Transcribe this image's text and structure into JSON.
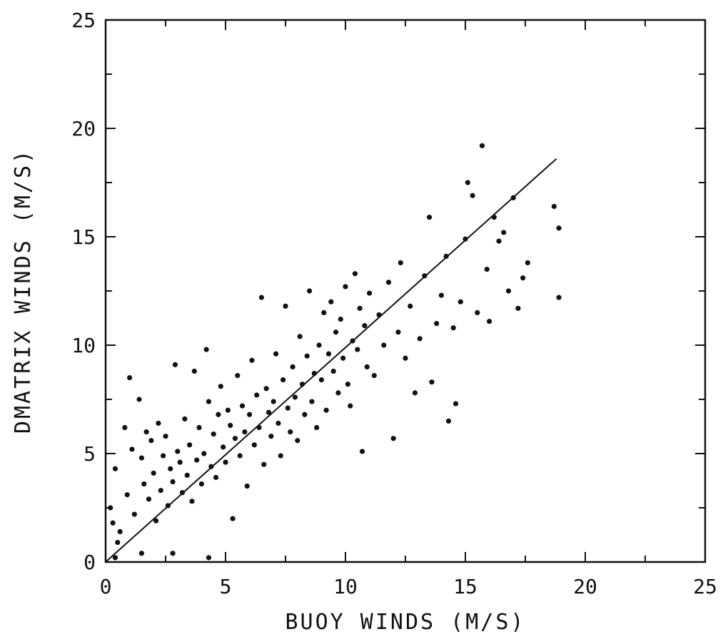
{
  "chart_data": {
    "type": "scatter",
    "title": "",
    "xlabel": "BUOY WINDS (M/S)",
    "ylabel": "DMATRIX WINDS (M/S)",
    "xlim": [
      0,
      25
    ],
    "ylim": [
      0,
      25
    ],
    "x_ticks": [
      "0",
      "5",
      "10",
      "15",
      "20",
      "25"
    ],
    "y_ticks": [
      "0",
      "5",
      "10",
      "15",
      "20",
      "25"
    ],
    "grid": false,
    "legend": "none",
    "colors": {
      "points": "#111111",
      "line": "#111111",
      "frame": "#111111"
    },
    "fit_line": {
      "x": [
        0,
        18.8
      ],
      "y": [
        0,
        18.6
      ]
    },
    "points": [
      [
        0.2,
        2.5
      ],
      [
        0.3,
        1.8
      ],
      [
        0.4,
        4.3
      ],
      [
        0.5,
        0.9
      ],
      [
        0.6,
        1.4
      ],
      [
        0.8,
        6.2
      ],
      [
        0.9,
        3.1
      ],
      [
        1.0,
        8.5
      ],
      [
        1.1,
        5.2
      ],
      [
        1.2,
        2.2
      ],
      [
        1.4,
        7.5
      ],
      [
        1.5,
        4.8
      ],
      [
        1.6,
        3.6
      ],
      [
        1.7,
        6.0
      ],
      [
        1.8,
        2.9
      ],
      [
        1.9,
        5.6
      ],
      [
        2.0,
        4.1
      ],
      [
        2.1,
        1.9
      ],
      [
        2.2,
        6.4
      ],
      [
        2.3,
        3.3
      ],
      [
        2.4,
        4.9
      ],
      [
        2.5,
        5.8
      ],
      [
        2.6,
        2.6
      ],
      [
        2.7,
        4.3
      ],
      [
        2.8,
        3.7
      ],
      [
        2.9,
        9.1
      ],
      [
        3.0,
        5.1
      ],
      [
        3.1,
        4.6
      ],
      [
        3.2,
        3.2
      ],
      [
        3.3,
        6.6
      ],
      [
        3.4,
        4.0
      ],
      [
        3.5,
        5.4
      ],
      [
        3.6,
        2.8
      ],
      [
        3.7,
        8.8
      ],
      [
        3.8,
        4.7
      ],
      [
        3.9,
        6.2
      ],
      [
        4.0,
        3.6
      ],
      [
        4.1,
        5.0
      ],
      [
        4.2,
        9.8
      ],
      [
        4.3,
        7.4
      ],
      [
        4.4,
        4.4
      ],
      [
        4.5,
        5.9
      ],
      [
        4.6,
        3.9
      ],
      [
        4.7,
        6.8
      ],
      [
        4.8,
        8.1
      ],
      [
        4.9,
        5.3
      ],
      [
        5.0,
        4.6
      ],
      [
        5.1,
        7.0
      ],
      [
        5.2,
        6.3
      ],
      [
        5.3,
        2.0
      ],
      [
        5.4,
        5.7
      ],
      [
        5.5,
        8.6
      ],
      [
        5.6,
        4.9
      ],
      [
        5.7,
        7.2
      ],
      [
        5.8,
        6.0
      ],
      [
        5.9,
        3.5
      ],
      [
        6.0,
        6.8
      ],
      [
        6.1,
        9.3
      ],
      [
        6.2,
        5.4
      ],
      [
        6.3,
        7.7
      ],
      [
        6.4,
        6.2
      ],
      [
        6.5,
        12.2
      ],
      [
        6.6,
        4.5
      ],
      [
        6.7,
        8.0
      ],
      [
        6.8,
        6.9
      ],
      [
        6.9,
        5.8
      ],
      [
        7.0,
        7.4
      ],
      [
        7.1,
        9.6
      ],
      [
        7.2,
        6.4
      ],
      [
        7.3,
        4.9
      ],
      [
        7.4,
        8.4
      ],
      [
        7.5,
        11.8
      ],
      [
        7.6,
        7.1
      ],
      [
        7.7,
        6.0
      ],
      [
        7.8,
        9.0
      ],
      [
        7.9,
        7.6
      ],
      [
        8.0,
        5.6
      ],
      [
        8.1,
        10.4
      ],
      [
        8.2,
        8.2
      ],
      [
        8.3,
        6.8
      ],
      [
        8.4,
        9.5
      ],
      [
        8.5,
        12.5
      ],
      [
        8.6,
        7.4
      ],
      [
        8.7,
        8.7
      ],
      [
        8.8,
        6.2
      ],
      [
        8.9,
        10.0
      ],
      [
        9.0,
        8.4
      ],
      [
        9.1,
        11.5
      ],
      [
        9.2,
        7.0
      ],
      [
        9.3,
        9.6
      ],
      [
        9.4,
        12.0
      ],
      [
        9.5,
        8.8
      ],
      [
        9.6,
        10.6
      ],
      [
        9.7,
        7.8
      ],
      [
        9.8,
        11.2
      ],
      [
        9.9,
        9.4
      ],
      [
        10.0,
        12.7
      ],
      [
        10.1,
        8.2
      ],
      [
        10.2,
        7.2
      ],
      [
        10.3,
        10.2
      ],
      [
        10.4,
        13.3
      ],
      [
        10.5,
        9.8
      ],
      [
        10.6,
        11.7
      ],
      [
        10.7,
        5.1
      ],
      [
        10.8,
        10.9
      ],
      [
        10.9,
        9.0
      ],
      [
        11.0,
        12.4
      ],
      [
        11.2,
        8.6
      ],
      [
        11.4,
        11.4
      ],
      [
        11.6,
        10.0
      ],
      [
        11.8,
        12.9
      ],
      [
        12.0,
        5.7
      ],
      [
        12.2,
        10.6
      ],
      [
        12.3,
        13.8
      ],
      [
        12.5,
        9.4
      ],
      [
        12.7,
        11.8
      ],
      [
        12.9,
        7.8
      ],
      [
        13.1,
        10.3
      ],
      [
        13.3,
        13.2
      ],
      [
        13.5,
        15.9
      ],
      [
        13.6,
        8.3
      ],
      [
        13.8,
        11.0
      ],
      [
        14.0,
        12.3
      ],
      [
        14.2,
        14.1
      ],
      [
        14.3,
        6.5
      ],
      [
        14.5,
        10.8
      ],
      [
        14.6,
        7.3
      ],
      [
        14.8,
        12.0
      ],
      [
        15.0,
        14.9
      ],
      [
        15.1,
        17.5
      ],
      [
        15.3,
        16.9
      ],
      [
        15.5,
        11.5
      ],
      [
        15.7,
        19.2
      ],
      [
        15.9,
        13.5
      ],
      [
        16.0,
        11.1
      ],
      [
        16.2,
        15.9
      ],
      [
        16.4,
        14.8
      ],
      [
        16.6,
        15.2
      ],
      [
        16.8,
        12.5
      ],
      [
        17.0,
        16.8
      ],
      [
        17.2,
        11.7
      ],
      [
        17.4,
        13.1
      ],
      [
        17.6,
        13.8
      ],
      [
        18.7,
        16.4
      ],
      [
        18.9,
        15.4
      ],
      [
        18.9,
        12.2
      ],
      [
        0.4,
        0.2
      ],
      [
        1.5,
        0.4
      ],
      [
        2.8,
        0.4
      ],
      [
        4.3,
        0.2
      ]
    ]
  }
}
